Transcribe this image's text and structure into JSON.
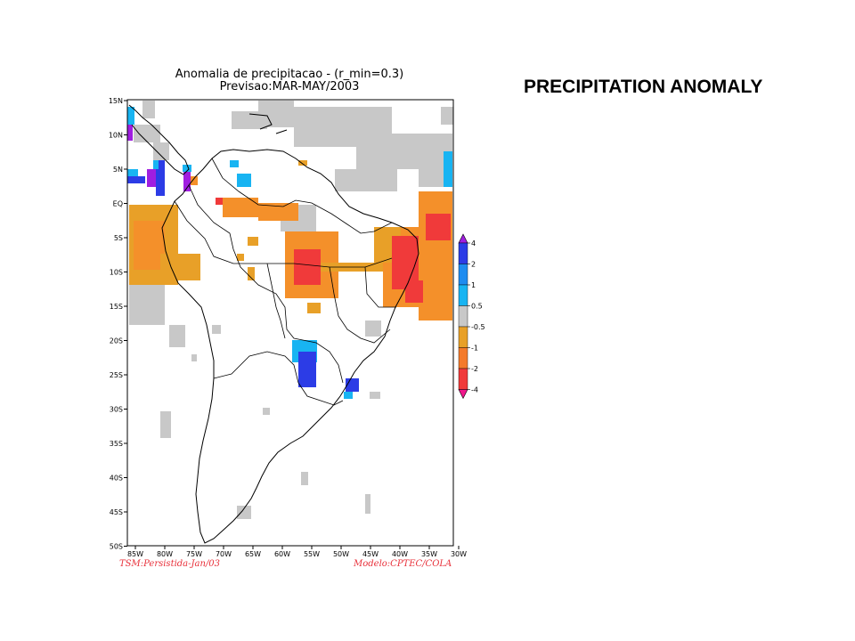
{
  "slide": {
    "title": "PRECIPITATION ANOMALY"
  },
  "map": {
    "title_line1": "Anomalia de precipitacao - (r_min=0.3)",
    "title_line2": "Previsao:MAR-MAY/2003",
    "footer_left": "TSM:Persistida-Jan/03",
    "footer_right": "Modelo:CPTEC/COLA",
    "lat_labels": [
      "15N",
      "10N",
      "5N",
      "EQ",
      "5S",
      "10S",
      "15S",
      "20S",
      "25S",
      "30S",
      "35S",
      "40S",
      "45S",
      "50S"
    ],
    "lon_labels": [
      "85W",
      "80W",
      "75W",
      "70W",
      "65W",
      "60W",
      "55W",
      "50W",
      "45W",
      "40W",
      "35W",
      "30W"
    ],
    "legend": {
      "labels": [
        "4",
        "2",
        "1",
        "0.5",
        "-0.5",
        "-1",
        "-2",
        "-4"
      ],
      "colors": [
        "#a01ee0",
        "#2c3ce6",
        "#1e8cf0",
        "#18b4f2",
        "#c8c8c8",
        "#e8a028",
        "#f47a2a",
        "#f03a3a",
        "#f0188c"
      ]
    },
    "colors": {
      "gray": "#c8c8c8",
      "orange_light": "#e8a028",
      "orange": "#f4902a",
      "red": "#f03a3a",
      "light_blue": "#18b4f2",
      "blue": "#2c3ce6",
      "purple": "#a01ee0"
    }
  }
}
